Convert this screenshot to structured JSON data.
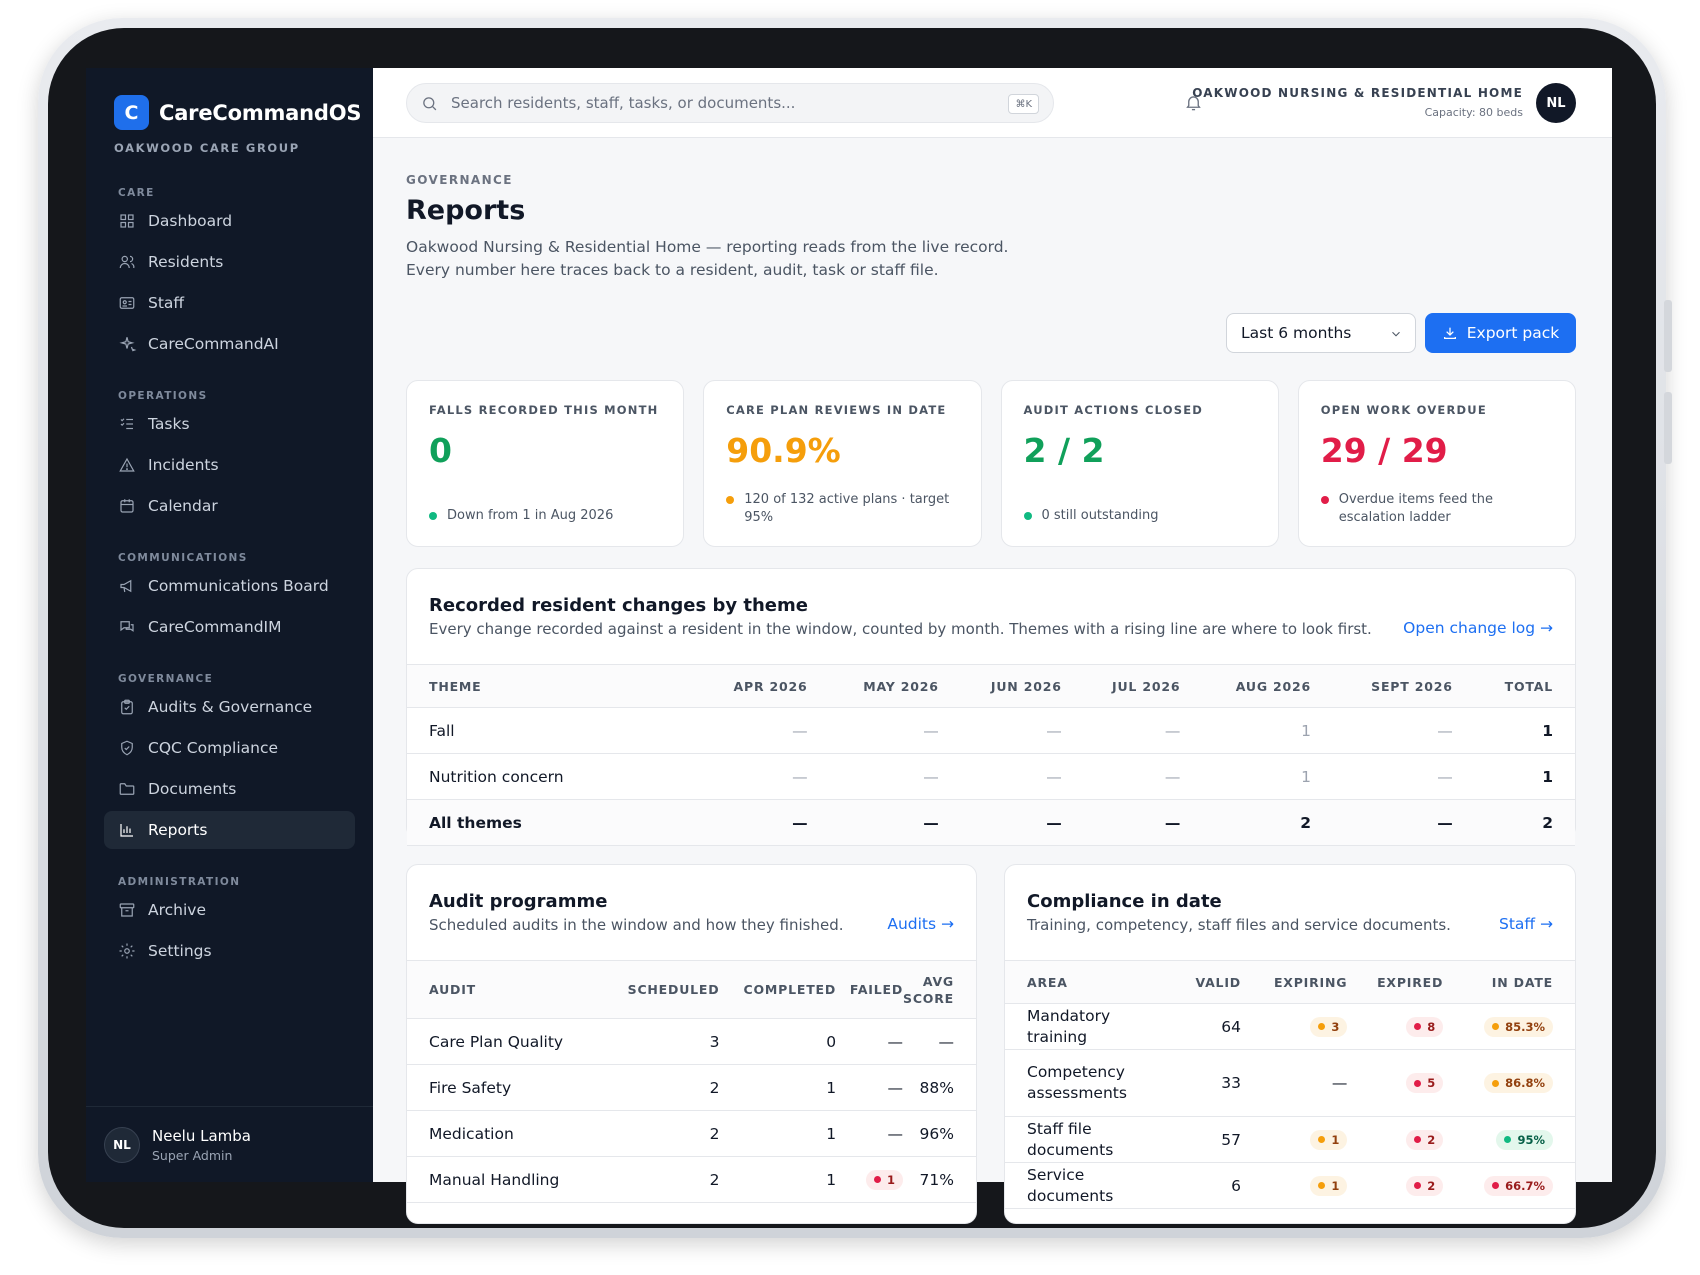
{
  "brand": {
    "initial": "C",
    "name": "CareCommandOS",
    "org": "OAKWOOD CARE GROUP"
  },
  "nav": {
    "sections": [
      {
        "title": "CARE",
        "items": [
          {
            "label": "Dashboard",
            "icon": "dashboard-icon"
          },
          {
            "label": "Residents",
            "icon": "users-icon"
          },
          {
            "label": "Staff",
            "icon": "id-card-icon"
          },
          {
            "label": "CareCommandAI",
            "icon": "sparkle-icon"
          }
        ]
      },
      {
        "title": "OPERATIONS",
        "items": [
          {
            "label": "Tasks",
            "icon": "checklist-icon"
          },
          {
            "label": "Incidents",
            "icon": "warning-icon"
          },
          {
            "label": "Calendar",
            "icon": "calendar-icon"
          }
        ]
      },
      {
        "title": "COMMUNICATIONS",
        "items": [
          {
            "label": "Communications Board",
            "icon": "megaphone-icon"
          },
          {
            "label": "CareCommandIM",
            "icon": "chat-icon"
          }
        ]
      },
      {
        "title": "GOVERNANCE",
        "items": [
          {
            "label": "Audits & Governance",
            "icon": "clipboard-icon"
          },
          {
            "label": "CQC Compliance",
            "icon": "shield-icon"
          },
          {
            "label": "Documents",
            "icon": "folder-icon"
          },
          {
            "label": "Reports",
            "icon": "bar-chart-icon"
          }
        ]
      },
      {
        "title": "ADMINISTRATION",
        "items": [
          {
            "label": "Archive",
            "icon": "archive-icon"
          },
          {
            "label": "Settings",
            "icon": "gear-icon"
          }
        ]
      }
    ],
    "active": "Reports"
  },
  "user": {
    "initials": "NL",
    "name": "Neelu Lamba",
    "role": "Super Admin"
  },
  "topbar": {
    "search_placeholder": "Search residents, staff, tasks, or documents...",
    "shortcut": "⌘K",
    "home_name": "OAKWOOD NURSING & RESIDENTIAL HOME",
    "home_capacity": "Capacity: 80 beds",
    "avatar": "NL"
  },
  "page": {
    "eyebrow": "GOVERNANCE",
    "title": "Reports",
    "description": "Oakwood Nursing & Residential Home — reporting reads from the live record. Every number here traces back to a resident, audit, task or staff file.",
    "range": "Last 6 months",
    "export_label": "Export pack"
  },
  "kpis": [
    {
      "label": "FALLS RECORDED THIS MONTH",
      "value": "0",
      "color": "#10a05a",
      "note": "Down from 1 in Aug 2026",
      "dot": "#10b981"
    },
    {
      "label": "CARE PLAN REVIEWS IN DATE",
      "value": "90.9%",
      "color": "#f59e0b",
      "note": "120 of 132 active plans · target 95%",
      "dot": "#f59e0b"
    },
    {
      "label": "AUDIT ACTIONS CLOSED",
      "value": "2 / 2",
      "color": "#10a05a",
      "note": "0 still outstanding",
      "dot": "#10b981"
    },
    {
      "label": "OPEN WORK OVERDUE",
      "value": "29 / 29",
      "color": "#e11d48",
      "note": "Overdue items feed the escalation ladder",
      "dot": "#e11d48"
    }
  ],
  "changes": {
    "title": "Recorded resident changes by theme",
    "subtitle": "Every change recorded against a resident in the window, counted by month. Themes with a rising line are where to look first.",
    "link": "Open change log →",
    "columns": [
      "THEME",
      "APR 2026",
      "MAY 2026",
      "JUN 2026",
      "JUL 2026",
      "AUG 2026",
      "SEPT 2026",
      "TOTAL"
    ],
    "rows": [
      [
        "Fall",
        "—",
        "—",
        "—",
        "—",
        "1",
        "—",
        "1"
      ],
      [
        "Nutrition concern",
        "—",
        "—",
        "—",
        "—",
        "1",
        "—",
        "1"
      ]
    ],
    "total_row": [
      "All themes",
      "—",
      "—",
      "—",
      "—",
      "2",
      "—",
      "2"
    ]
  },
  "audits": {
    "title": "Audit programme",
    "subtitle": "Scheduled audits in the window and how they finished.",
    "link": "Audits →",
    "columns": [
      "AUDIT",
      "SCHEDULED",
      "COMPLETED",
      "FAILED",
      "AVG SCORE"
    ],
    "rows": [
      {
        "name": "Care Plan Quality",
        "scheduled": "3",
        "completed": "0",
        "failed": "—",
        "score": "—"
      },
      {
        "name": "Fire Safety",
        "scheduled": "2",
        "completed": "1",
        "failed": "—",
        "score": "88%"
      },
      {
        "name": "Medication",
        "scheduled": "2",
        "completed": "1",
        "failed": "—",
        "score": "96%"
      },
      {
        "name": "Manual Handling",
        "scheduled": "2",
        "completed": "1",
        "failed": "1",
        "score": "71%"
      }
    ]
  },
  "compliance": {
    "title": "Compliance in date",
    "subtitle": "Training, competency, staff files and service documents.",
    "link": "Staff →",
    "columns": [
      "AREA",
      "VALID",
      "EXPIRING",
      "EXPIRED",
      "IN DATE"
    ],
    "rows": [
      {
        "area": "Mandatory training",
        "valid": "64",
        "expiring": "3",
        "expired": "8",
        "in_date": "85.3%",
        "in_date_status": "amber"
      },
      {
        "area": "Competency assessments",
        "valid": "33",
        "expiring": "—",
        "expired": "5",
        "in_date": "86.8%",
        "in_date_status": "amber"
      },
      {
        "area": "Staff file documents",
        "valid": "57",
        "expiring": "1",
        "expired": "2",
        "in_date": "95%",
        "in_date_status": "green"
      },
      {
        "area": "Service documents",
        "valid": "6",
        "expiring": "1",
        "expired": "2",
        "in_date": "66.7%",
        "in_date_status": "red"
      }
    ]
  }
}
